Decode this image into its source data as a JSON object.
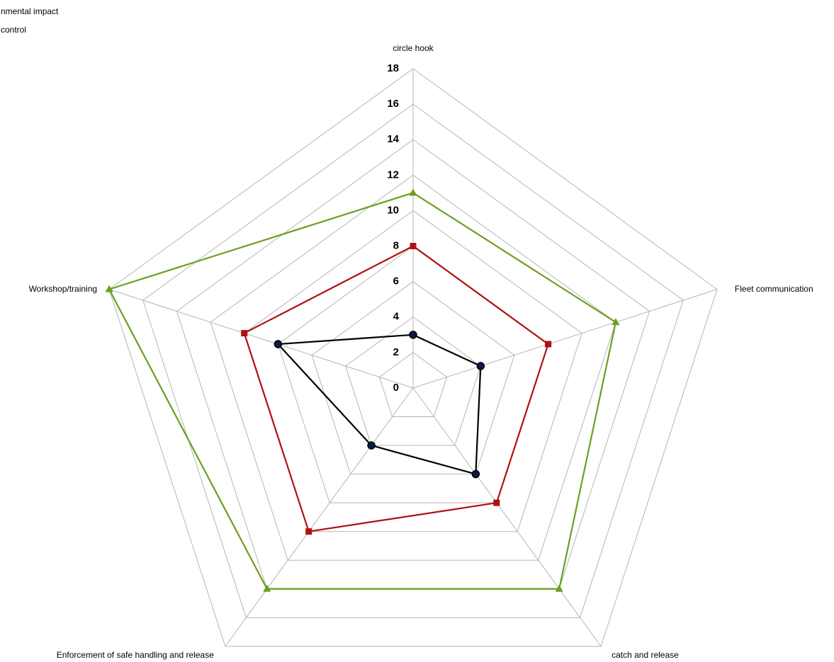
{
  "chart_data": {
    "type": "radar",
    "categories": [
      "circle hook",
      "Fleet communication",
      "catch and release",
      "Enforcement of safe handling and release",
      "Workshop/training"
    ],
    "series": [
      {
        "color": "#000000",
        "marker": "circle",
        "values": [
          3,
          4,
          6,
          4,
          8
        ]
      },
      {
        "name": "nmental impact",
        "color": "#6b9e1f",
        "marker": "triangle",
        "values": [
          11,
          12,
          14,
          14,
          18
        ]
      },
      {
        "name": "control",
        "color": "#b01010",
        "marker": "square",
        "values": [
          8,
          8,
          8,
          10,
          10
        ]
      }
    ],
    "ylim": [
      0,
      18
    ],
    "yticks": [
      0,
      2,
      4,
      6,
      8,
      10,
      12,
      14,
      16,
      18
    ],
    "grid": true
  }
}
